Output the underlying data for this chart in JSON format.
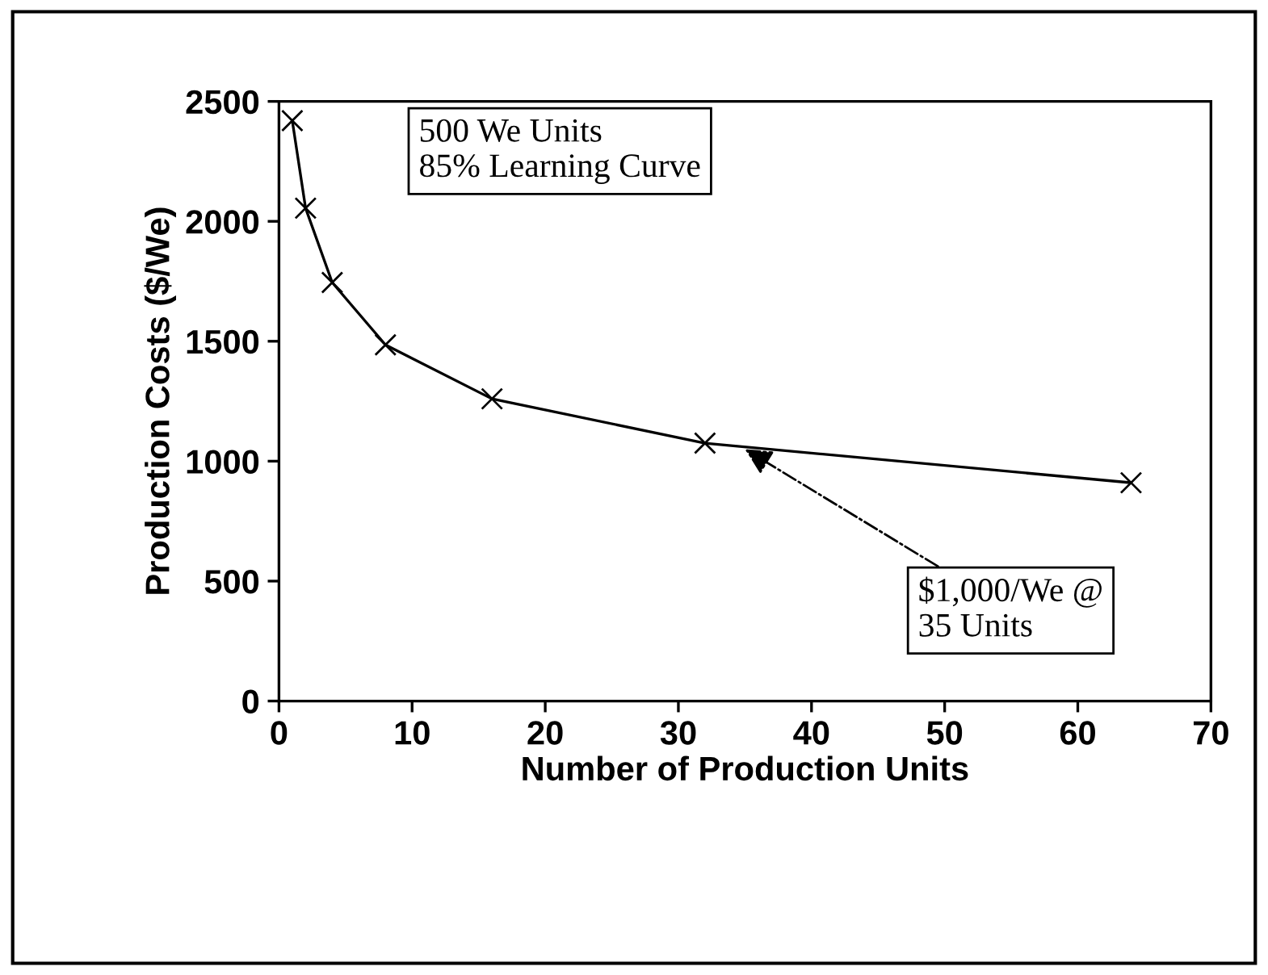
{
  "chart_data": {
    "type": "line",
    "xlabel": "Number of Production Units",
    "ylabel": "Production Costs ($/We)",
    "x": [
      1,
      2,
      4,
      8,
      16,
      32,
      64
    ],
    "series": [
      {
        "color": "#000000",
        "values": [
          2420,
          2055,
          1745,
          1485,
          1260,
          1075,
          910
        ]
      }
    ],
    "marker": "cross",
    "line_style": "solid",
    "grid": false,
    "legend": false,
    "xlim": [
      0,
      70
    ],
    "xticks": [
      0,
      10,
      20,
      30,
      40,
      50,
      60,
      70
    ],
    "ylim": [
      0,
      2500
    ],
    "yticks": [
      0,
      500,
      1000,
      1500,
      2000,
      2500
    ],
    "annotations": [
      "500 We Units\n85% Learning Curve",
      {
        "text": "$1,000/We @\n35 Units",
        "x": 35,
        "y": 1050
      }
    ]
  }
}
